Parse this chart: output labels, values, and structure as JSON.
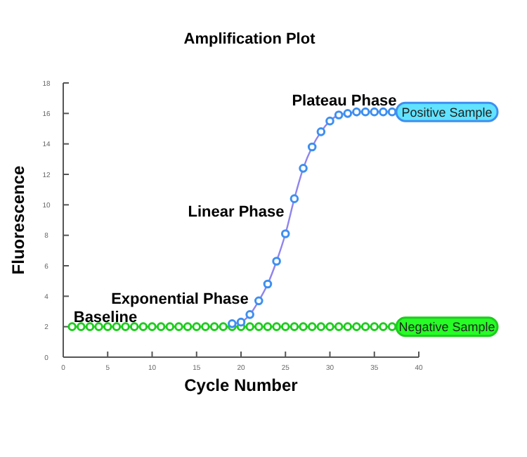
{
  "chart_data": {
    "type": "line",
    "title": "Amplification Plot",
    "xlabel": "Cycle Number",
    "ylabel": "Fluorescence",
    "xlim": [
      0,
      40
    ],
    "xticks": [
      0,
      5,
      10,
      15,
      20,
      25,
      30,
      35,
      40
    ],
    "ylim": [
      0,
      18
    ],
    "yticks": [
      0,
      2,
      4,
      6,
      8,
      10,
      12,
      14,
      16,
      18
    ],
    "marker": "circle",
    "line_style": "solid",
    "grid": false,
    "series": [
      {
        "name": "Positive Sample",
        "color": "#3d8ff0",
        "x": [
          19,
          20,
          21,
          22,
          23,
          24,
          25,
          26,
          27,
          28,
          29,
          30,
          31,
          32,
          33,
          34,
          35,
          36,
          37
        ],
        "values": [
          2.2,
          2.3,
          2.8,
          3.7,
          4.8,
          6.3,
          8.1,
          10.4,
          12.4,
          13.8,
          14.8,
          15.5,
          15.9,
          16.0,
          16.1,
          16.1,
          16.1,
          16.1,
          16.1
        ]
      },
      {
        "name": "Negative Sample",
        "color": "#1ecc1e",
        "x": [
          1,
          2,
          3,
          4,
          5,
          6,
          7,
          8,
          9,
          10,
          11,
          12,
          13,
          14,
          15,
          16,
          17,
          18,
          19,
          20,
          21,
          22,
          23,
          24,
          25,
          26,
          27,
          28,
          29,
          30,
          31,
          32,
          33,
          34,
          35,
          36,
          37
        ],
        "values": [
          2,
          2,
          2,
          2,
          2,
          2,
          2,
          2,
          2,
          2,
          2,
          2,
          2,
          2,
          2,
          2,
          2,
          2,
          2,
          2,
          2,
          2,
          2,
          2,
          2,
          2,
          2,
          2,
          2,
          2,
          2,
          2,
          2,
          2,
          2,
          2,
          2
        ]
      }
    ],
    "annotations": [
      "Plateau Phase",
      "Linear Phase",
      "Exponential Phase",
      "Baseline"
    ]
  }
}
